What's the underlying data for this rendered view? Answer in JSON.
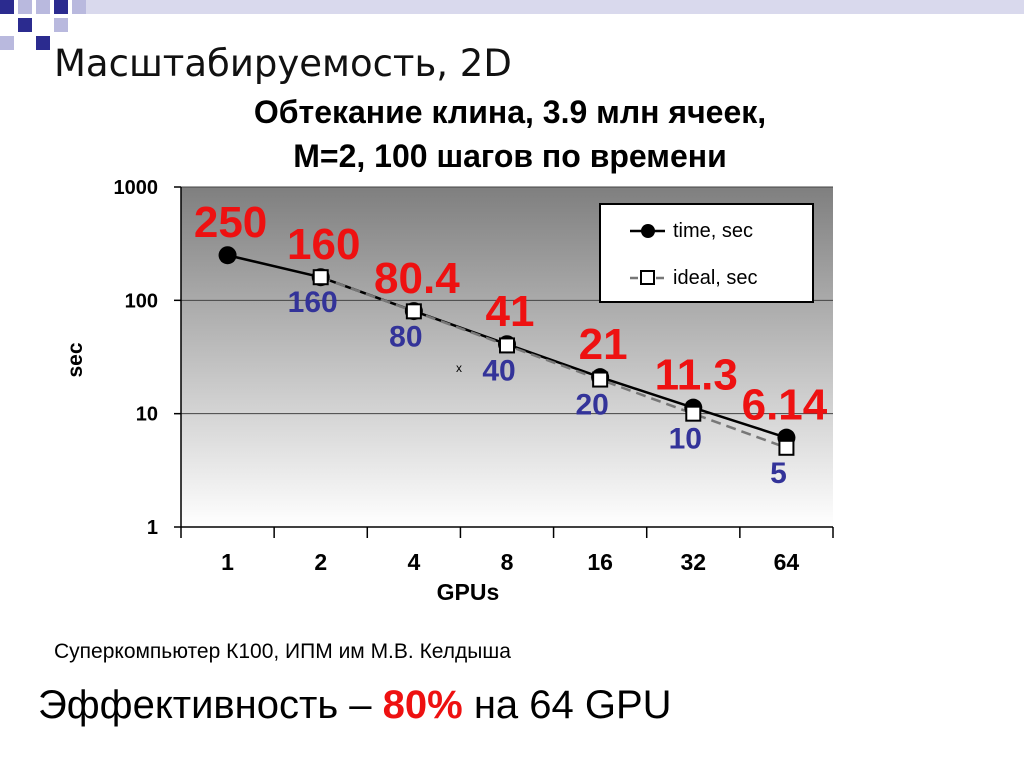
{
  "slide": {
    "title": "Масштабируемость, 2D",
    "chart_title_line1": "Обтекание клина, 3.9 млн ячеек,",
    "chart_title_line2": "M=2, 100 шагов по времени",
    "source_note": "Суперкомпьютер К100, ИПМ им М.В. Келдыша",
    "efficiency_prefix": "Эффективность – ",
    "efficiency_value": "80%",
    "efficiency_suffix": " на 64 GPU"
  },
  "colors": {
    "time_label": "#ee1111",
    "ideal_label": "#333399",
    "deco_dark": "#2b2b8f",
    "deco_light": "#b9b9de"
  },
  "chart_data": {
    "type": "line",
    "title": "Обтекание клина, 3.9 млн ячеек, M=2, 100 шагов по времени",
    "xlabel": "GPUs",
    "ylabel": "sec",
    "categories": [
      "1",
      "2",
      "4",
      "8",
      "16",
      "32",
      "64"
    ],
    "y_scale": "log",
    "ylim": [
      1,
      1000
    ],
    "yticks": [
      "1",
      "10",
      "100",
      "1000"
    ],
    "grid": true,
    "legend_position": "top-right",
    "series": [
      {
        "name": "time, sec",
        "marker": "circle",
        "values": [
          250,
          160,
          80.4,
          41,
          21,
          11.3,
          6.14
        ],
        "labels": [
          "250",
          "160",
          "80.4",
          "41",
          "21",
          "11.3",
          "6.14"
        ]
      },
      {
        "name": "ideal, sec",
        "marker": "square",
        "values": [
          null,
          160,
          80,
          40,
          20,
          10,
          5
        ],
        "labels": [
          "",
          "160",
          "80",
          "40",
          "20",
          "10",
          "5"
        ]
      }
    ],
    "annotations": [
      "x"
    ]
  }
}
